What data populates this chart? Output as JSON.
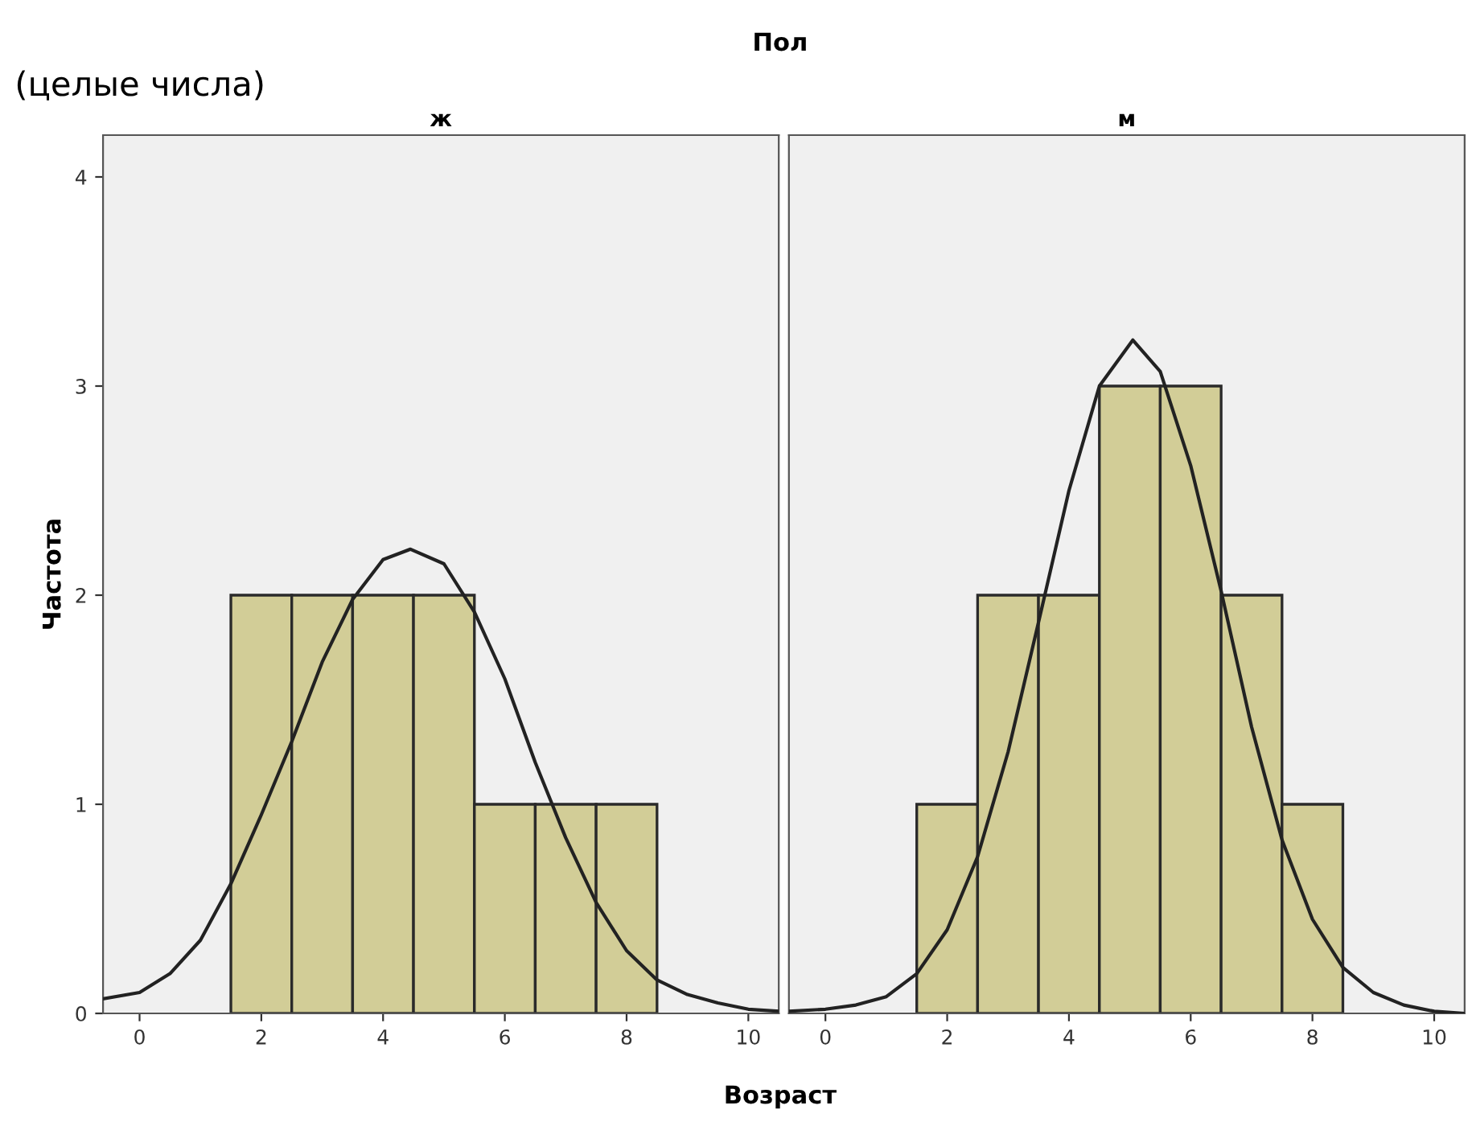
{
  "chart_data": [
    {
      "type": "histogram",
      "title": "ж",
      "xlabel": "Возраст",
      "ylabel": "Частота",
      "annotations": [
        "Пол",
        "(целые числа)"
      ],
      "bins": [
        1.5,
        2.5,
        3.5,
        4.5,
        5.5,
        6.5,
        7.5,
        8.5
      ],
      "series": [
        {
          "color": "#d2cd97",
          "values": [
            2,
            2,
            2,
            2,
            1,
            1,
            1
          ]
        },
        {
          "type": "line",
          "color": "#222222",
          "x": [
            -0.6,
            0,
            0.5,
            1,
            1.5,
            2,
            2.5,
            3,
            3.5,
            4,
            4.45,
            5,
            5.5,
            6,
            6.5,
            7,
            7.5,
            8,
            8.5,
            9,
            9.5,
            10,
            10.5
          ],
          "values": [
            0.07,
            0.1,
            0.19,
            0.35,
            0.62,
            0.95,
            1.3,
            1.68,
            1.98,
            2.17,
            2.22,
            2.15,
            1.92,
            1.6,
            1.2,
            0.84,
            0.53,
            0.3,
            0.16,
            0.09,
            0.05,
            0.02,
            0.01
          ]
        }
      ],
      "xlim": [
        -0.6,
        10.5
      ],
      "xticks": [
        0,
        2,
        4,
        6,
        8,
        10
      ],
      "ylim": [
        0,
        4.2
      ],
      "yticks": [
        0,
        1,
        2,
        3,
        4
      ],
      "grid": false,
      "legend": false
    },
    {
      "type": "histogram",
      "title": "м",
      "bins": [
        1.5,
        2.5,
        3.5,
        4.5,
        5.5,
        6.5,
        7.5,
        8.5
      ],
      "series": [
        {
          "color": "#d2cd97",
          "values": [
            1,
            2,
            2,
            3,
            3,
            2,
            1
          ]
        },
        {
          "type": "line",
          "color": "#222222",
          "x": [
            -0.6,
            0,
            0.5,
            1,
            1.5,
            2,
            2.5,
            3,
            3.5,
            4,
            4.5,
            5.05,
            5.5,
            6,
            6.5,
            7,
            7.5,
            8,
            8.5,
            9,
            9.5,
            10,
            10.5
          ],
          "values": [
            0.01,
            0.02,
            0.04,
            0.08,
            0.19,
            0.4,
            0.75,
            1.25,
            1.87,
            2.5,
            3.0,
            3.22,
            3.07,
            2.62,
            2.02,
            1.37,
            0.83,
            0.45,
            0.22,
            0.1,
            0.04,
            0.01,
            0.0
          ]
        }
      ],
      "xlim": [
        -0.6,
        10.5
      ],
      "xticks": [
        0,
        2,
        4,
        6,
        8,
        10
      ],
      "ylim": [
        0,
        4.2
      ],
      "yticks": [
        0,
        1,
        2,
        3,
        4
      ],
      "tick_labels": "x",
      "grid": false,
      "legend": false
    }
  ]
}
